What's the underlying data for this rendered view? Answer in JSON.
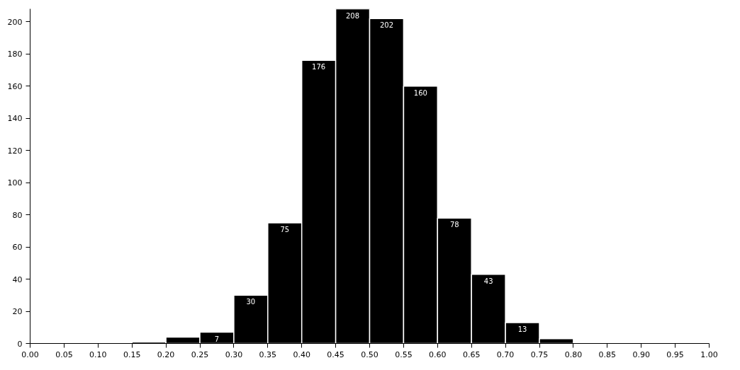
{
  "chart_data": {
    "type": "histogram",
    "bins": [
      0.15,
      0.2,
      0.25,
      0.3,
      0.35,
      0.4,
      0.45,
      0.5,
      0.55,
      0.6,
      0.65,
      0.7,
      0.75,
      0.8
    ],
    "values": [
      1,
      4,
      7,
      30,
      75,
      176,
      208,
      202,
      160,
      78,
      43,
      13,
      3
    ],
    "value_labels": [
      null,
      null,
      "7",
      "30",
      "75",
      "176",
      "208",
      "202",
      "160",
      "78",
      "43",
      "13",
      null
    ],
    "color": "#000000",
    "xlim": [
      0,
      1
    ],
    "xticks": [
      {
        "value": 0,
        "label": "0.00"
      },
      {
        "value": 0.05,
        "label": "0.05"
      },
      {
        "value": 0.1,
        "label": "0.10"
      },
      {
        "value": 0.15,
        "label": "0.15"
      },
      {
        "value": 0.2,
        "label": "0.20"
      },
      {
        "value": 0.25,
        "label": "0.25"
      },
      {
        "value": 0.3,
        "label": "0.30"
      },
      {
        "value": 0.35,
        "label": "0.35"
      },
      {
        "value": 0.4,
        "label": "0.40"
      },
      {
        "value": 0.45,
        "label": "0.45"
      },
      {
        "value": 0.5,
        "label": "0.50"
      },
      {
        "value": 0.55,
        "label": "0.55"
      },
      {
        "value": 0.6,
        "label": "0.60"
      },
      {
        "value": 0.65,
        "label": "0.65"
      },
      {
        "value": 0.7,
        "label": "0.70"
      },
      {
        "value": 0.75,
        "label": "0.75"
      },
      {
        "value": 0.8,
        "label": "0.80"
      },
      {
        "value": 0.85,
        "label": "0.85"
      },
      {
        "value": 0.9,
        "label": "0.90"
      },
      {
        "value": 0.95,
        "label": "0.95"
      },
      {
        "value": 1,
        "label": "1.00"
      }
    ],
    "ylim": [
      0,
      208
    ],
    "yticks": [
      0,
      20,
      40,
      60,
      80,
      100,
      120,
      140,
      160,
      180,
      200
    ],
    "grid": false
  }
}
